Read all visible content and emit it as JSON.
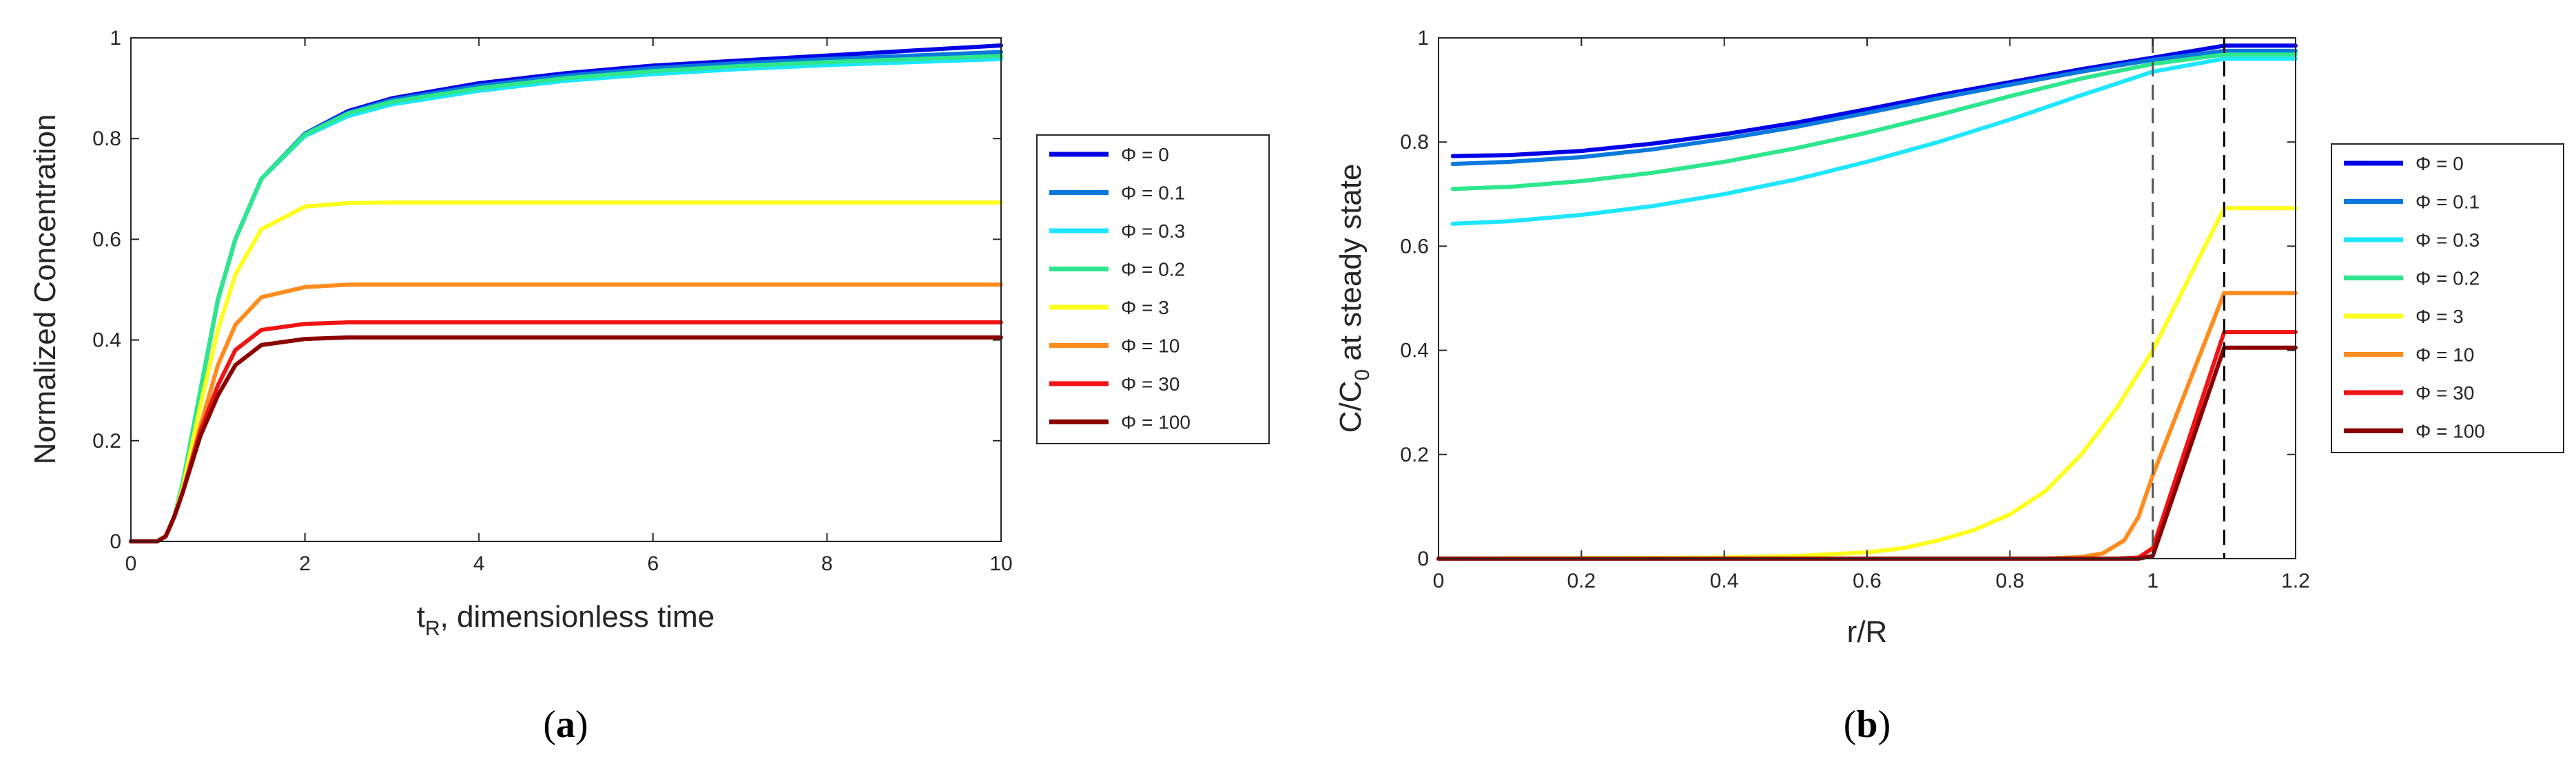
{
  "figure": {
    "panel_a": {
      "label_open": "(",
      "label_letter": "a",
      "label_close": ")"
    },
    "panel_b": {
      "label_open": "(",
      "label_letter": "b",
      "label_close": ")"
    }
  },
  "chart_data": [
    {
      "type": "line",
      "id": "a",
      "title": "",
      "xlabel_main": "t",
      "xlabel_sub": "R",
      "xlabel_rest": ", dimensionless time",
      "ylabel": "Normalized Concentration",
      "xlim": [
        0,
        10
      ],
      "ylim": [
        0,
        1
      ],
      "xticks": [
        0,
        2,
        4,
        6,
        8,
        10
      ],
      "yticks": [
        0,
        0.2,
        0.4,
        0.6,
        0.8,
        1
      ],
      "xtick_labels": [
        "0",
        "2",
        "4",
        "6",
        "8",
        "10"
      ],
      "ytick_labels": [
        "0",
        "0.2",
        "0.4",
        "0.6",
        "0.8",
        "1"
      ],
      "grid": false,
      "legend_position": "outside-right",
      "series": [
        {
          "name": "Φ = 0",
          "color": "#0000e6",
          "x": [
            0,
            0.3,
            0.4,
            0.5,
            0.6,
            0.8,
            1.0,
            1.2,
            1.5,
            2.0,
            2.5,
            3.0,
            4.0,
            5.0,
            6.0,
            7.0,
            8.0,
            9.0,
            10.0
          ],
          "values": [
            0,
            0,
            0.01,
            0.05,
            0.12,
            0.3,
            0.48,
            0.6,
            0.72,
            0.81,
            0.855,
            0.88,
            0.91,
            0.93,
            0.945,
            0.955,
            0.965,
            0.975,
            0.985
          ]
        },
        {
          "name": "Φ = 0.1",
          "color": "#0a78dc",
          "x": [
            0,
            0.3,
            0.4,
            0.5,
            0.6,
            0.8,
            1.0,
            1.2,
            1.5,
            2.0,
            2.5,
            3.0,
            4.0,
            5.0,
            6.0,
            7.0,
            8.0,
            9.0,
            10.0
          ],
          "values": [
            0,
            0,
            0.01,
            0.05,
            0.12,
            0.3,
            0.48,
            0.6,
            0.72,
            0.81,
            0.852,
            0.877,
            0.905,
            0.925,
            0.94,
            0.95,
            0.958,
            0.965,
            0.972
          ]
        },
        {
          "name": "Φ = 0.3",
          "color": "#1ee6ff",
          "x": [
            0,
            0.3,
            0.4,
            0.5,
            0.6,
            0.8,
            1.0,
            1.2,
            1.5,
            2.0,
            2.5,
            3.0,
            4.0,
            5.0,
            6.0,
            7.0,
            8.0,
            9.0,
            10.0
          ],
          "values": [
            0,
            0,
            0.01,
            0.05,
            0.12,
            0.3,
            0.48,
            0.6,
            0.72,
            0.805,
            0.845,
            0.868,
            0.895,
            0.915,
            0.928,
            0.938,
            0.946,
            0.952,
            0.958
          ]
        },
        {
          "name": "Φ = 0.2",
          "color": "#2ee68c",
          "x": [
            0,
            0.3,
            0.4,
            0.5,
            0.6,
            0.8,
            1.0,
            1.2,
            1.5,
            2.0,
            2.5,
            3.0,
            4.0,
            5.0,
            6.0,
            7.0,
            8.0,
            9.0,
            10.0
          ],
          "values": [
            0,
            0,
            0.01,
            0.05,
            0.12,
            0.3,
            0.48,
            0.6,
            0.72,
            0.808,
            0.85,
            0.873,
            0.9,
            0.92,
            0.934,
            0.944,
            0.952,
            0.958,
            0.964
          ]
        },
        {
          "name": "Φ = 3",
          "color": "#ffff1e",
          "x": [
            0,
            0.3,
            0.4,
            0.5,
            0.6,
            0.8,
            1.0,
            1.2,
            1.5,
            2.0,
            2.5,
            3.0,
            4.0,
            6.0,
            8.0,
            10.0
          ],
          "values": [
            0,
            0,
            0.01,
            0.05,
            0.11,
            0.27,
            0.42,
            0.53,
            0.62,
            0.665,
            0.672,
            0.673,
            0.673,
            0.673,
            0.673,
            0.673
          ]
        },
        {
          "name": "Φ = 10",
          "color": "#ff8c1e",
          "x": [
            0,
            0.3,
            0.4,
            0.5,
            0.6,
            0.8,
            1.0,
            1.2,
            1.5,
            2.0,
            2.5,
            3.0,
            4.0,
            6.0,
            8.0,
            10.0
          ],
          "values": [
            0,
            0,
            0.01,
            0.05,
            0.1,
            0.23,
            0.35,
            0.43,
            0.485,
            0.505,
            0.51,
            0.51,
            0.51,
            0.51,
            0.51,
            0.51
          ]
        },
        {
          "name": "Φ = 30",
          "color": "#f01414",
          "x": [
            0,
            0.3,
            0.4,
            0.5,
            0.6,
            0.8,
            1.0,
            1.2,
            1.5,
            2.0,
            2.5,
            3.0,
            4.0,
            6.0,
            8.0,
            10.0
          ],
          "values": [
            0,
            0,
            0.01,
            0.05,
            0.1,
            0.22,
            0.31,
            0.38,
            0.42,
            0.432,
            0.435,
            0.435,
            0.435,
            0.435,
            0.435,
            0.435
          ]
        },
        {
          "name": "Φ = 100",
          "color": "#8c0000",
          "x": [
            0,
            0.3,
            0.4,
            0.5,
            0.6,
            0.8,
            1.0,
            1.2,
            1.5,
            2.0,
            2.5,
            3.0,
            4.0,
            6.0,
            8.0,
            10.0
          ],
          "values": [
            0,
            0,
            0.01,
            0.05,
            0.1,
            0.21,
            0.29,
            0.35,
            0.39,
            0.402,
            0.405,
            0.405,
            0.405,
            0.405,
            0.405,
            0.405
          ]
        }
      ]
    },
    {
      "type": "line",
      "id": "b",
      "title": "",
      "xlabel": "r/R",
      "ylabel_pre": "C/C",
      "ylabel_sub": "0",
      "ylabel_post": " at steady state",
      "xlim": [
        0,
        1.2
      ],
      "ylim": [
        0,
        1
      ],
      "xticks": [
        0,
        0.2,
        0.4,
        0.6,
        0.8,
        1,
        1.2
      ],
      "yticks": [
        0,
        0.2,
        0.4,
        0.6,
        0.8,
        1
      ],
      "xtick_labels": [
        "0",
        "0.2",
        "0.4",
        "0.6",
        "0.8",
        "1",
        "1.2"
      ],
      "ytick_labels": [
        "0",
        "0.2",
        "0.4",
        "0.6",
        "0.8",
        "1"
      ],
      "grid": false,
      "legend_position": "outside-right",
      "vlines": [
        1.0,
        1.1
      ],
      "series": [
        {
          "name": "Φ = 0",
          "color": "#0000e6",
          "x": [
            0.02,
            0.1,
            0.2,
            0.3,
            0.4,
            0.5,
            0.6,
            0.7,
            0.8,
            0.9,
            1.0,
            1.1,
            1.2
          ],
          "values": [
            0.773,
            0.775,
            0.783,
            0.797,
            0.815,
            0.837,
            0.863,
            0.89,
            0.915,
            0.94,
            0.962,
            0.985,
            0.985
          ]
        },
        {
          "name": "Φ = 0.1",
          "color": "#0a78dc",
          "x": [
            0.02,
            0.1,
            0.2,
            0.3,
            0.4,
            0.5,
            0.6,
            0.7,
            0.8,
            0.9,
            1.0,
            1.1,
            1.2
          ],
          "values": [
            0.758,
            0.762,
            0.771,
            0.786,
            0.806,
            0.829,
            0.856,
            0.884,
            0.91,
            0.935,
            0.958,
            0.975,
            0.975
          ]
        },
        {
          "name": "Φ = 0.3",
          "color": "#1ee6ff",
          "x": [
            0.02,
            0.1,
            0.2,
            0.3,
            0.4,
            0.5,
            0.6,
            0.7,
            0.8,
            0.9,
            1.0,
            1.1,
            1.2
          ],
          "values": [
            0.643,
            0.648,
            0.66,
            0.677,
            0.7,
            0.728,
            0.762,
            0.8,
            0.843,
            0.89,
            0.935,
            0.96,
            0.96
          ]
        },
        {
          "name": "Φ = 0.2",
          "color": "#2ee68c",
          "x": [
            0.02,
            0.1,
            0.2,
            0.3,
            0.4,
            0.5,
            0.6,
            0.7,
            0.8,
            0.9,
            1.0,
            1.1,
            1.2
          ],
          "values": [
            0.71,
            0.714,
            0.725,
            0.741,
            0.762,
            0.788,
            0.818,
            0.852,
            0.888,
            0.922,
            0.95,
            0.968,
            0.968
          ]
        },
        {
          "name": "Φ = 3",
          "color": "#ffff1e",
          "x": [
            0.0,
            0.4,
            0.5,
            0.6,
            0.65,
            0.7,
            0.75,
            0.8,
            0.85,
            0.9,
            0.95,
            1.0,
            1.1,
            1.2
          ],
          "values": [
            0,
            0.002,
            0.005,
            0.012,
            0.02,
            0.035,
            0.055,
            0.085,
            0.13,
            0.2,
            0.29,
            0.4,
            0.673,
            0.673
          ]
        },
        {
          "name": "Φ = 10",
          "color": "#ff8c1e",
          "x": [
            0.0,
            0.85,
            0.9,
            0.93,
            0.96,
            0.98,
            1.0,
            1.1,
            1.2
          ],
          "values": [
            0,
            0,
            0.003,
            0.01,
            0.035,
            0.08,
            0.16,
            0.51,
            0.51
          ]
        },
        {
          "name": "Φ = 30",
          "color": "#f01414",
          "x": [
            0.0,
            0.95,
            0.98,
            1.0,
            1.1,
            1.2
          ],
          "values": [
            0,
            0,
            0.002,
            0.02,
            0.435,
            0.435
          ]
        },
        {
          "name": "Φ = 100",
          "color": "#8c0000",
          "x": [
            0.0,
            0.98,
            1.0,
            1.1,
            1.2
          ],
          "values": [
            0,
            0,
            0.005,
            0.405,
            0.405
          ]
        }
      ]
    }
  ]
}
